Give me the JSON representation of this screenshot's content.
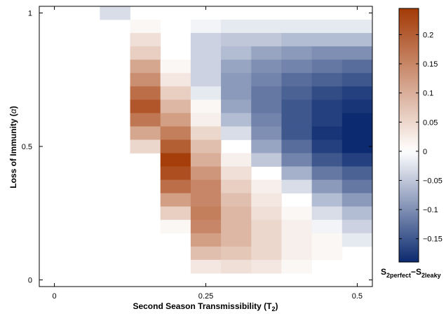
{
  "chart_data": {
    "type": "heatmap",
    "xlabel": "Second Season Transmissibility (T",
    "xlabel_sub": "2",
    "xlabel_close": ")",
    "ylabel": "Loss of Immunity (",
    "ylabel_symbol": "α",
    "ylabel_close": ")",
    "colorbar_label_parts": [
      "S",
      "2perfect",
      "−S",
      "2leaky"
    ],
    "x_ticks": [
      "0",
      "0.25",
      "0.5"
    ],
    "y_ticks": [
      "0",
      "0.5",
      "1"
    ],
    "xlim": [
      -0.025,
      0.525
    ],
    "ylim": [
      -0.025,
      1.025
    ],
    "colorbar_ticks": [
      "0.2",
      "0.15",
      "0.1",
      "0.05",
      "0",
      "−0.05",
      "−0.1",
      "−0.15"
    ],
    "colorbar_tick_values": [
      0.2,
      0.15,
      0.1,
      0.05,
      0,
      -0.05,
      -0.1,
      -0.15
    ],
    "color_range": [
      -0.19,
      0.245
    ],
    "x": [
      0.0,
      0.05,
      0.1,
      0.15,
      0.2,
      0.25,
      0.3,
      0.35,
      0.4,
      0.45,
      0.5
    ],
    "y": [
      1.0,
      0.95,
      0.9,
      0.85,
      0.8,
      0.75,
      0.7,
      0.65,
      0.6,
      0.55,
      0.5,
      0.45,
      0.4,
      0.35,
      0.3,
      0.25,
      0.2,
      0.15,
      0.1,
      0.05,
      0.0
    ],
    "z": [
      [
        0,
        0,
        -0.03,
        0,
        0,
        0,
        0,
        0,
        0,
        0,
        0
      ],
      [
        0,
        0,
        0,
        0.01,
        0,
        -0.01,
        -0.02,
        -0.02,
        -0.02,
        -0.02,
        -0.02
      ],
      [
        0,
        0,
        0,
        0.04,
        0,
        -0.04,
        -0.05,
        -0.05,
        -0.06,
        -0.06,
        -0.06
      ],
      [
        0,
        0,
        0,
        0.06,
        0,
        -0.04,
        -0.06,
        -0.08,
        -0.09,
        -0.1,
        -0.1
      ],
      [
        0,
        0,
        0,
        0.11,
        0.01,
        -0.04,
        -0.08,
        -0.1,
        -0.11,
        -0.12,
        -0.13
      ],
      [
        0,
        0,
        0,
        0.14,
        0.03,
        -0.04,
        -0.09,
        -0.11,
        -0.13,
        -0.14,
        -0.15
      ],
      [
        0,
        0,
        0,
        0.18,
        0.06,
        -0.02,
        -0.09,
        -0.12,
        -0.14,
        -0.16,
        -0.17
      ],
      [
        0,
        0,
        0,
        0.21,
        0.09,
        0.01,
        -0.08,
        -0.12,
        -0.15,
        -0.17,
        -0.18
      ],
      [
        0,
        0,
        0,
        0.17,
        0.12,
        0.02,
        -0.06,
        -0.11,
        -0.15,
        -0.17,
        -0.19
      ],
      [
        0,
        0,
        0,
        0.11,
        0.16,
        0.05,
        -0.03,
        -0.1,
        -0.15,
        -0.18,
        -0.19
      ],
      [
        0,
        0,
        0,
        0.05,
        0.2,
        0.08,
        0,
        -0.08,
        -0.13,
        -0.17,
        -0.19
      ],
      [
        0,
        0,
        0,
        0,
        0.24,
        0.1,
        0.02,
        -0.05,
        -0.11,
        -0.15,
        -0.17
      ],
      [
        0,
        0,
        0,
        0,
        0.22,
        0.13,
        0.04,
        0,
        -0.07,
        -0.12,
        -0.14
      ],
      [
        0,
        0,
        0,
        0,
        0.18,
        0.15,
        0.06,
        0.02,
        -0.03,
        -0.09,
        -0.12
      ],
      [
        0,
        0,
        0,
        0,
        0.12,
        0.15,
        0.08,
        0.03,
        0,
        -0.06,
        -0.09
      ],
      [
        0,
        0,
        0,
        0,
        0.06,
        0.16,
        0.09,
        0.04,
        0.01,
        -0.03,
        -0.06
      ],
      [
        0,
        0,
        0,
        0,
        0.01,
        0.15,
        0.09,
        0.05,
        0.02,
        -0.01,
        -0.04
      ],
      [
        0,
        0,
        0,
        0,
        0,
        0.12,
        0.09,
        0.05,
        0.02,
        0.01,
        -0.02
      ],
      [
        0,
        0,
        0,
        0,
        0,
        0.08,
        0.07,
        0.05,
        0.02,
        0.01,
        0
      ],
      [
        0,
        0,
        0,
        0,
        0,
        0.03,
        0.04,
        0.03,
        0.01,
        0,
        0
      ],
      [
        0,
        0,
        0,
        0,
        0,
        0,
        0,
        0,
        0,
        0,
        0
      ]
    ],
    "colors": {
      "negative_end": "#0b2a6f",
      "neutral": "#ffffff",
      "positive_end": "#a33a06"
    }
  }
}
